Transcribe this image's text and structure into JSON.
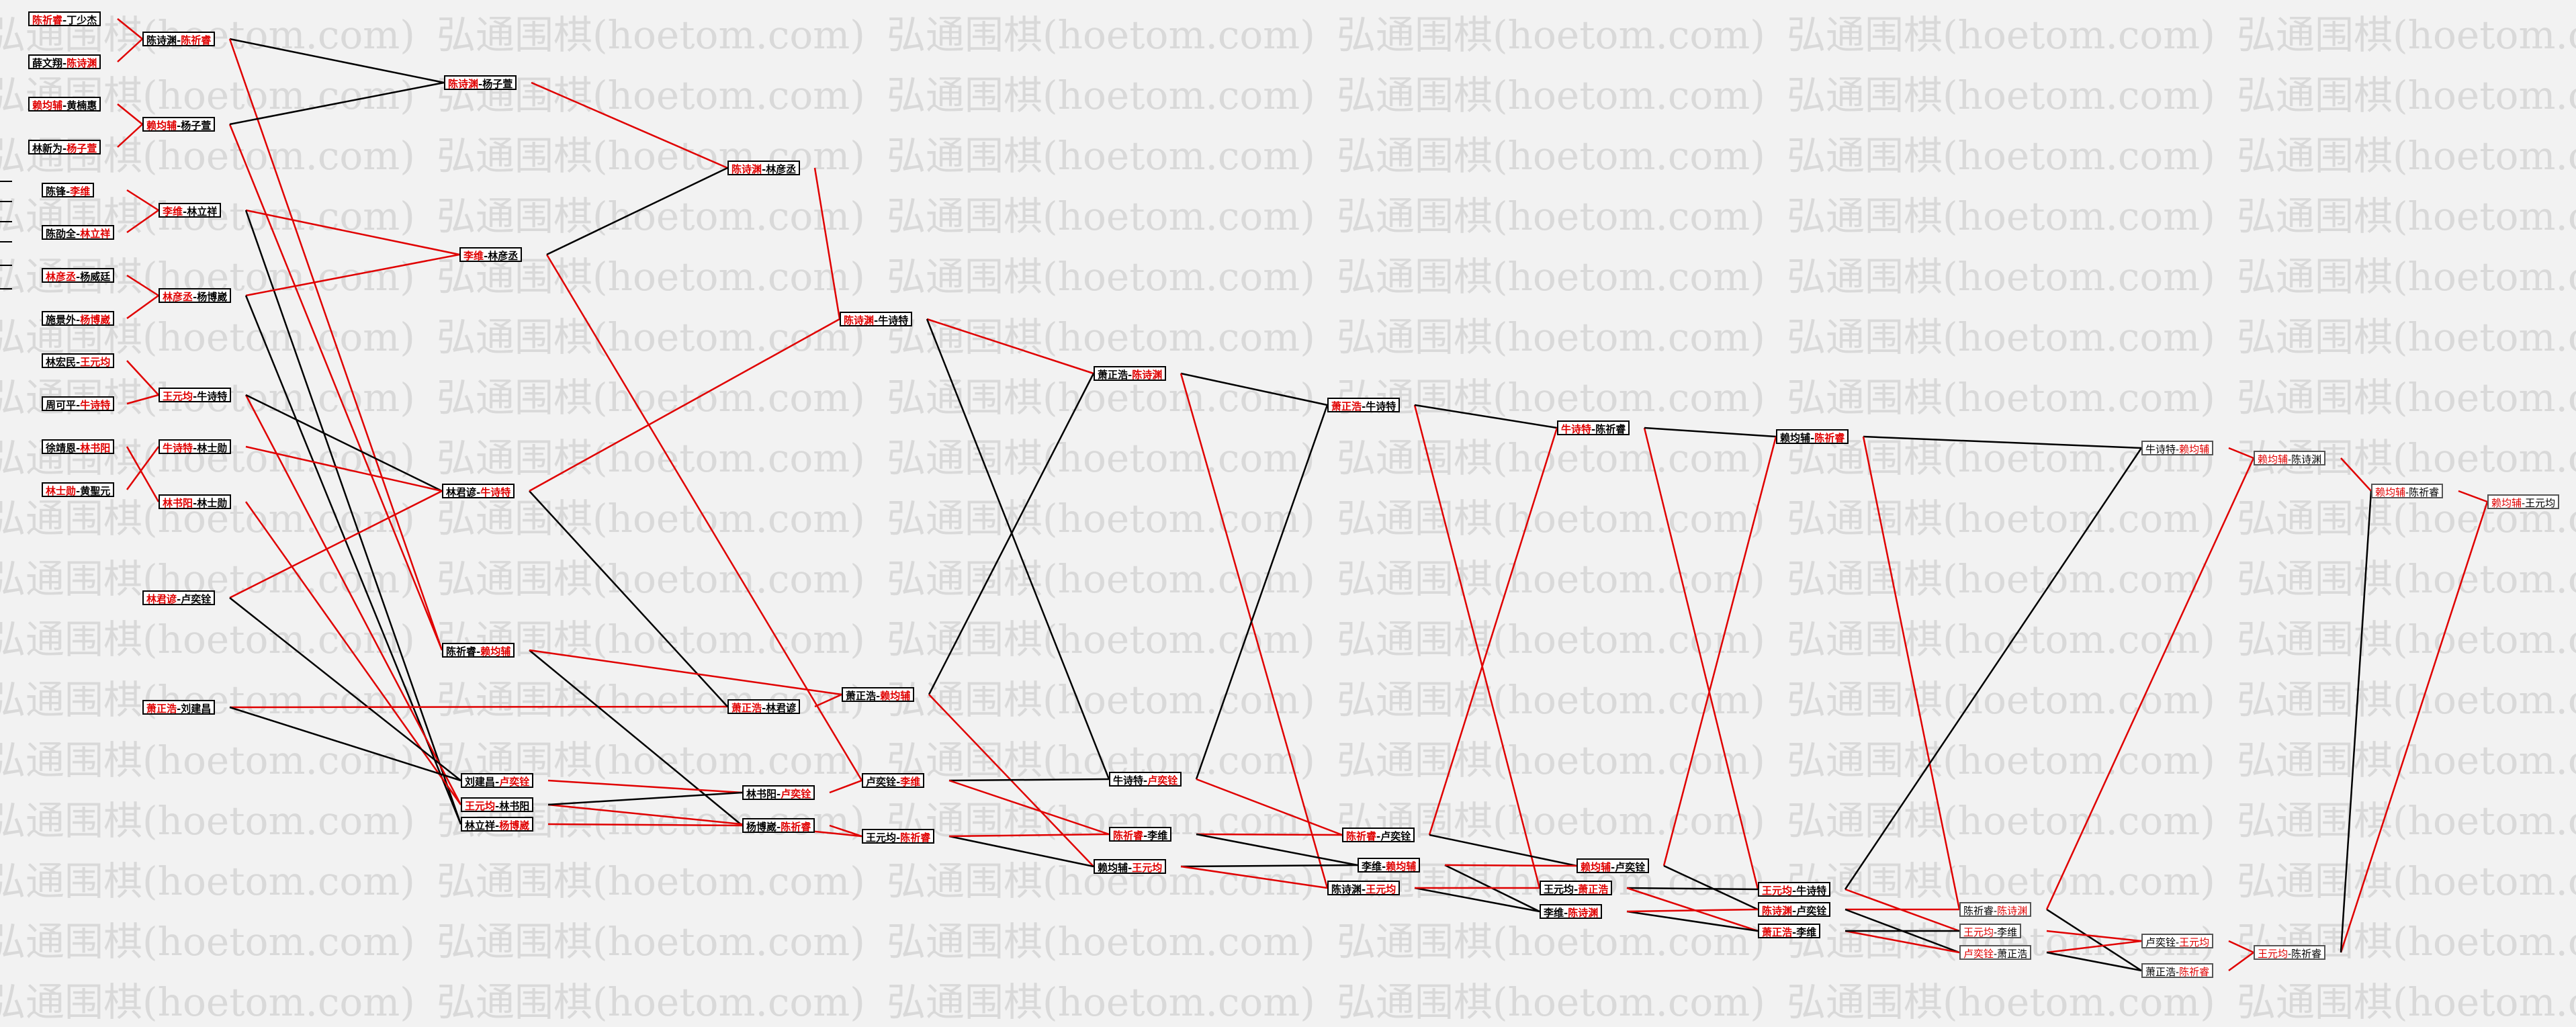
{
  "watermark": {
    "text": "弘通围棋(hoetom.com)"
  },
  "colors": {
    "winner_text": "#e00000",
    "winner_line": "#e00000",
    "loser_line": "#000000",
    "background": "#f2f2f2"
  },
  "nodes": {
    "r1_1": {
      "a": "陈祈睿",
      "b": "丁少杰",
      "w": "a"
    },
    "r1_2": {
      "a": "薛文翔",
      "b": "陈诗渊",
      "w": "b"
    },
    "r1_3": {
      "a": "赖均辅",
      "b": "黄楠惠",
      "w": "a"
    },
    "r1_4": {
      "a": "林新为",
      "b": "杨子萱",
      "w": "b"
    },
    "r1_5": {
      "a": "陈锋",
      "b": "李维",
      "w": "b"
    },
    "r1_6": {
      "a": "陈劭全",
      "b": "林立祥",
      "w": "b"
    },
    "r1_7": {
      "a": "林彦丞",
      "b": "杨威廷",
      "w": "a"
    },
    "r1_8": {
      "a": "施景外",
      "b": "杨博崴",
      "w": "b"
    },
    "r1_9": {
      "a": "林宏民",
      "b": "王元均",
      "w": "b"
    },
    "r1_10": {
      "a": "周可平",
      "b": "牛诗特",
      "w": "b"
    },
    "r1_11": {
      "a": "徐靖恩",
      "b": "林书阳",
      "w": "b"
    },
    "r1_12": {
      "a": "林士勋",
      "b": "黄聖元",
      "w": "a"
    },
    "r2_1": {
      "a": "陈诗渊",
      "b": "陈祈睿",
      "w": "b"
    },
    "r2_2": {
      "a": "赖均辅",
      "b": "杨子萱",
      "w": "a"
    },
    "r2_3": {
      "a": "李维",
      "b": "林立祥",
      "w": "a"
    },
    "r2_4": {
      "a": "林彦丞",
      "b": "杨博崴",
      "w": "a"
    },
    "r2_5": {
      "a": "王元均",
      "b": "牛诗特",
      "w": "a"
    },
    "r2_6": {
      "a": "牛诗特",
      "b": "林士勋",
      "w": "a"
    },
    "r2_7": {
      "a": "林书阳",
      "b": "林士勋",
      "w": "a"
    },
    "r2_8": {
      "a": "林君谚",
      "b": "卢奕铨",
      "w": "a"
    },
    "r2_9": {
      "a": "萧正浩",
      "b": "刘建昌",
      "w": "a"
    },
    "r3_1": {
      "a": "陈诗渊",
      "b": "杨子萱",
      "w": "a"
    },
    "r3_2": {
      "a": "李维",
      "b": "林彦丞",
      "w": "a"
    },
    "r3_3": {
      "a": "林君谚",
      "b": "牛诗特",
      "w": "b"
    },
    "r3_4": {
      "a": "陈祈睿",
      "b": "赖均辅",
      "w": "b"
    },
    "r3_5": {
      "a": "刘建昌",
      "b": "卢奕铨",
      "w": "b"
    },
    "r3_6": {
      "a": "王元均",
      "b": "林书阳",
      "w": "a"
    },
    "r3_7": {
      "a": "林立祥",
      "b": "杨博崴",
      "w": "b"
    },
    "r4_1": {
      "a": "陈诗渊",
      "b": "林彦丞",
      "w": "a"
    },
    "r4_2": {
      "a": "萧正浩",
      "b": "林君谚",
      "w": "a"
    },
    "r4_3": {
      "a": "林书阳",
      "b": "卢奕铨",
      "w": "b"
    },
    "r4_4": {
      "a": "杨博崴",
      "b": "陈祈睿",
      "w": "b"
    },
    "r5_1": {
      "a": "陈诗渊",
      "b": "牛诗特",
      "w": "a"
    },
    "r5_2": {
      "a": "萧正浩",
      "b": "赖均辅",
      "w": "b"
    },
    "r5_3": {
      "a": "卢奕铨",
      "b": "李维",
      "w": "b"
    },
    "r5_4": {
      "a": "王元均",
      "b": "陈祈睿",
      "w": "b"
    },
    "r6_1": {
      "a": "萧正浩",
      "b": "陈诗渊",
      "w": "b"
    },
    "r6_2": {
      "a": "牛诗特",
      "b": "卢奕铨",
      "w": "b"
    },
    "r6_3": {
      "a": "陈祈睿",
      "b": "李维",
      "w": "a"
    },
    "r6_4": {
      "a": "赖均辅",
      "b": "王元均",
      "w": "b"
    },
    "r7_1": {
      "a": "萧正浩",
      "b": "牛诗特",
      "w": "a"
    },
    "r7_2": {
      "a": "陈祈睿",
      "b": "卢奕铨",
      "w": "a"
    },
    "r7_3": {
      "a": "李维",
      "b": "赖均辅",
      "w": "b"
    },
    "r7_4": {
      "a": "陈诗渊",
      "b": "王元均",
      "w": "b"
    },
    "r8_1": {
      "a": "牛诗特",
      "b": "陈祈睿",
      "w": "a"
    },
    "r8_2": {
      "a": "赖均辅",
      "b": "卢奕铨",
      "w": "a"
    },
    "r8_3": {
      "a": "王元均",
      "b": "萧正浩",
      "w": "b"
    },
    "r8_4": {
      "a": "李维",
      "b": "陈诗渊",
      "w": "b"
    },
    "r9_1": {
      "a": "赖均辅",
      "b": "陈祈睿",
      "w": "b"
    },
    "r9_2": {
      "a": "王元均",
      "b": "牛诗特",
      "w": "a"
    },
    "r9_3": {
      "a": "陈诗渊",
      "b": "卢奕铨",
      "w": "a"
    },
    "r9_4": {
      "a": "萧正浩",
      "b": "李维",
      "w": "a"
    },
    "r10_1": {
      "a": "陈祈睿",
      "b": "陈诗渊",
      "w": "b"
    },
    "r10_2": {
      "a": "王元均",
      "b": "李维",
      "w": "a"
    },
    "r10_3": {
      "a": "卢奕铨",
      "b": "萧正浩",
      "w": "a"
    },
    "r11_1": {
      "a": "牛诗特",
      "b": "赖均辅",
      "w": "b"
    },
    "r11_2": {
      "a": "卢奕铨",
      "b": "王元均",
      "w": "b"
    },
    "r11_3": {
      "a": "萧正浩",
      "b": "陈祈睿",
      "w": "b"
    },
    "r12_1": {
      "a": "赖均辅",
      "b": "陈诗渊",
      "w": "a"
    },
    "r12_2": {
      "a": "王元均",
      "b": "陈祈睿",
      "w": "a"
    },
    "r13_1": {
      "a": "赖均辅",
      "b": "陈祈睿",
      "w": "a"
    },
    "r14_1": {
      "a": "赖均辅",
      "b": "王元均",
      "w": "a"
    }
  }
}
